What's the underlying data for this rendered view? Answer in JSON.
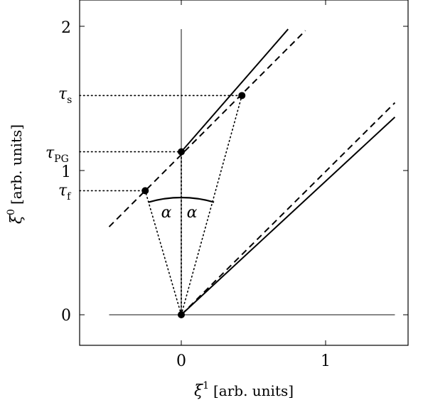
{
  "figure": {
    "x_axis": {
      "label_symbol": "ξ",
      "label_sup": "1",
      "label_unit": "[arb. units]",
      "ticks": [
        "0",
        "1"
      ],
      "range": [
        -0.7,
        1.6
      ]
    },
    "y_axis": {
      "label_symbol": "ξ",
      "label_sup": "0",
      "label_unit": "[arb. units]",
      "ticks": [
        "0",
        "1",
        "2"
      ],
      "range": [
        -0.22,
        2.18
      ]
    },
    "markers": {
      "tau_s": {
        "symbol": "τ",
        "sub": "s",
        "value": 1.52
      },
      "tau_pg": {
        "symbol": "τ",
        "sub": "PG",
        "value": 1.13
      },
      "tau_f": {
        "symbol": "τ",
        "sub": "f",
        "value": 0.86
      }
    },
    "angle_label": "α",
    "points": {
      "origin": [
        0,
        0
      ],
      "tau_pg_pt": [
        0,
        1.13
      ],
      "tau_f_pt": [
        -0.25,
        0.86
      ],
      "tau_s_pt": [
        0.42,
        1.52
      ]
    },
    "lines": {
      "upper_solid": [
        [
          0,
          1.13
        ],
        [
          0.74,
          1.98
        ]
      ],
      "upper_dashed": [
        [
          -0.5,
          0.61
        ],
        [
          0.86,
          1.97
        ]
      ],
      "lower_solid": [
        [
          0,
          0
        ],
        [
          1.48,
          1.37
        ]
      ],
      "lower_dashed": [
        [
          0,
          0
        ],
        [
          1.48,
          1.47
        ]
      ]
    }
  }
}
